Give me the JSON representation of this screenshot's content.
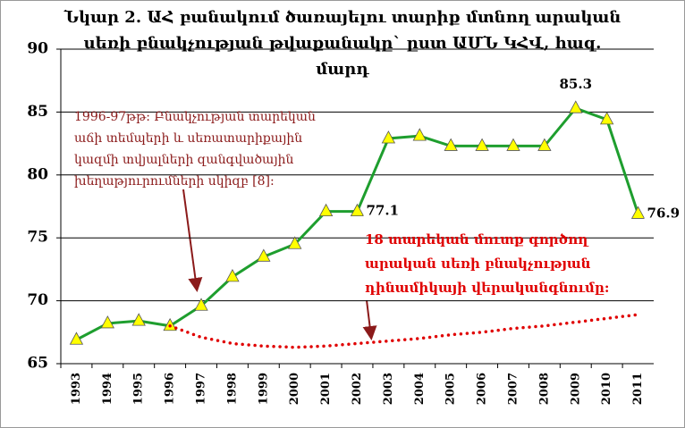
{
  "chart_data": {
    "type": "line",
    "title": [
      "Նկար 2. ԱՀ բանակում ծառայելու տարիք մտնող արական",
      "սեռի բնակչության թվաքանակը` ըստ ԱՄՆ ԿՀՎ, հազ.",
      "մարդ"
    ],
    "categories": [
      "1993",
      "1994",
      "1995",
      "1996",
      "1997",
      "1998",
      "1999",
      "2000",
      "2001",
      "2002",
      "2003",
      "2004",
      "2005",
      "2006",
      "2007",
      "2008",
      "2009",
      "2010",
      "2011"
    ],
    "series": [
      {
        "color": "#1e9e2e",
        "marker_color": "#ffff00",
        "values": [
          66.9,
          68.2,
          68.4,
          68.0,
          69.6,
          71.9,
          73.5,
          74.5,
          77.1,
          77.1,
          82.9,
          83.1,
          82.3,
          82.3,
          82.3,
          82.3,
          85.3,
          84.4,
          76.9
        ],
        "value_labels": [
          null,
          null,
          null,
          null,
          null,
          null,
          null,
          null,
          null,
          "77.1",
          null,
          null,
          null,
          null,
          null,
          null,
          "85.3",
          null,
          "76.9"
        ]
      },
      {
        "color": "#e00000",
        "style": "dotted",
        "values": [
          null,
          null,
          null,
          68.0,
          67.1,
          66.6,
          66.4,
          66.3,
          66.4,
          66.6,
          66.8,
          67.0,
          67.3,
          67.5,
          67.8,
          68.0,
          68.3,
          68.6,
          68.9
        ]
      }
    ],
    "annotations": [
      [
        "1996-97թթ: Բնակչության տարեկան",
        "աճի տեմպերի և սեռատարիքային",
        "կազմի տվյալների զանգվածային",
        "խեղաթյուրումների սկիզբ [8]:"
      ],
      [
        "18 տարեկան մուտք գործող",
        "արական սեռի բնակչության",
        "դինամիկայի վերականգնումը:"
      ]
    ],
    "ylim": [
      65,
      90
    ],
    "yticks": [
      65,
      70,
      75,
      80,
      85,
      90
    ],
    "grid": true
  }
}
